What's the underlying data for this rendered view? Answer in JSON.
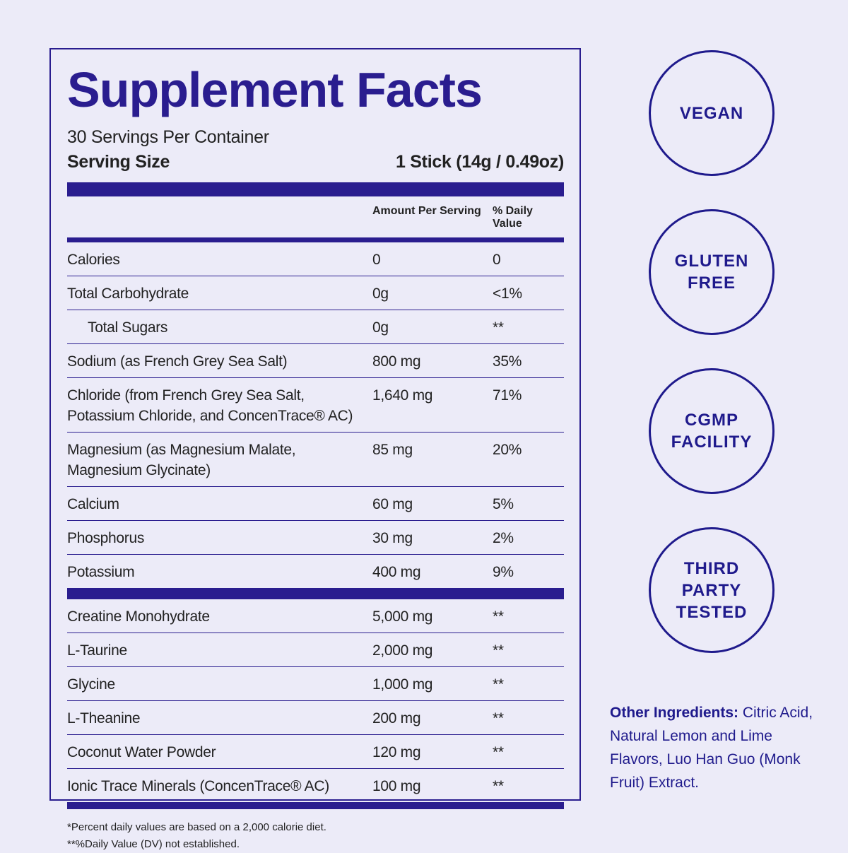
{
  "facts": {
    "title": "Supplement Facts",
    "servings": "30 Servings Per Container",
    "serving_size_label": "Serving Size",
    "serving_size": "1 Stick (14g / 0.49oz)",
    "columns": [
      "Amount Per Serving",
      "% Daily Value"
    ],
    "sections": [
      {
        "rows": [
          {
            "name": "Calories",
            "amount": "0",
            "dv": "0"
          },
          {
            "name": "Total Carbohydrate",
            "amount": "0g",
            "dv": "<1%"
          },
          {
            "name": "Total Sugars",
            "amount": "0g",
            "dv": "**",
            "indent": true
          },
          {
            "name": "Sodium (as French Grey Sea Salt)",
            "amount": "800 mg",
            "dv": "35%"
          },
          {
            "name": "Chloride (from French Grey Sea Salt,\nPotassium Chloride, and ConcenTrace® AC)",
            "amount": "1,640 mg",
            "dv": "71%"
          },
          {
            "name": "Magnesium (as Magnesium Malate,\nMagnesium Glycinate)",
            "amount": "85 mg",
            "dv": "20%"
          },
          {
            "name": "Calcium",
            "amount": "60 mg",
            "dv": "5%"
          },
          {
            "name": "Phosphorus",
            "amount": "30 mg",
            "dv": "2%"
          },
          {
            "name": "Potassium",
            "amount": "400 mg",
            "dv": "9%"
          }
        ]
      },
      {
        "rows": [
          {
            "name": "Creatine Monohydrate",
            "amount": "5,000 mg",
            "dv": "**"
          },
          {
            "name": "L-Taurine",
            "amount": "2,000 mg",
            "dv": "**"
          },
          {
            "name": "Glycine",
            "amount": "1,000 mg",
            "dv": "**"
          },
          {
            "name": "L-Theanine",
            "amount": "200 mg",
            "dv": "**"
          },
          {
            "name": "Coconut Water Powder",
            "amount": "120 mg",
            "dv": "**"
          },
          {
            "name": "Ionic Trace Minerals (ConcenTrace® AC)",
            "amount": "100 mg",
            "dv": "**"
          }
        ]
      }
    ],
    "footnotes": [
      "*Percent daily values are based on a 2,000 calorie diet.",
      "**%Daily Value (DV) not established."
    ]
  },
  "badges": [
    "VEGAN",
    "GLUTEN\nFREE",
    "CGMP\nFACILITY",
    "THIRD\nPARTY\nTESTED"
  ],
  "other_ingredients": {
    "label": "Other Ingredients:",
    "text": "Citric Acid, Natural Lemon and Lime Flavors, Luo Han Guo (Monk Fruit) Extract."
  }
}
